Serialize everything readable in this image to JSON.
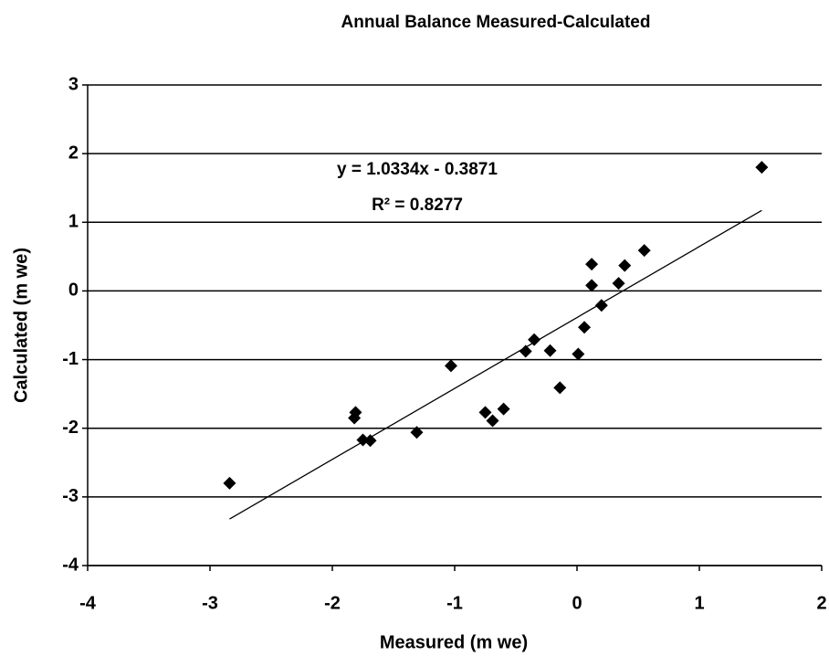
{
  "chart_data": {
    "type": "scatter",
    "title": "Annual Balance Measured-Calculated",
    "x_label": "Measured (m we)",
    "y_label": "Calculated (m we)",
    "x": [
      -2.84,
      1.51,
      -1.81,
      -1.82,
      -1.75,
      -1.69,
      -1.31,
      -1.03,
      -0.75,
      -0.69,
      -0.6,
      -0.42,
      -0.35,
      -0.22,
      -0.14,
      0.01,
      0.06,
      0.12,
      0.12,
      0.2,
      0.34,
      0.39,
      0.55
    ],
    "values": [
      -2.8,
      1.8,
      -1.77,
      -1.85,
      -2.17,
      -2.18,
      -2.06,
      -1.09,
      -1.77,
      -1.89,
      -1.72,
      -0.88,
      -0.71,
      -0.87,
      -1.41,
      -0.92,
      -0.53,
      0.39,
      0.08,
      -0.21,
      0.11,
      0.37,
      0.59
    ],
    "color": "#000000",
    "xlim": [
      -4,
      2
    ],
    "xticks": [
      -4,
      -3,
      -2,
      -1,
      0,
      1,
      2
    ],
    "ylim": [
      -4,
      3
    ],
    "yticks": [
      -4,
      -3,
      -2,
      -1,
      0,
      1,
      2,
      3
    ],
    "grid": true,
    "trendline": {
      "slope": 1.0334,
      "intercept": -0.3871,
      "equation": "y = 1.0334x - 0.3871",
      "r2": {
        "value": 0.8277,
        "label": "R² = 0.8277"
      }
    }
  }
}
